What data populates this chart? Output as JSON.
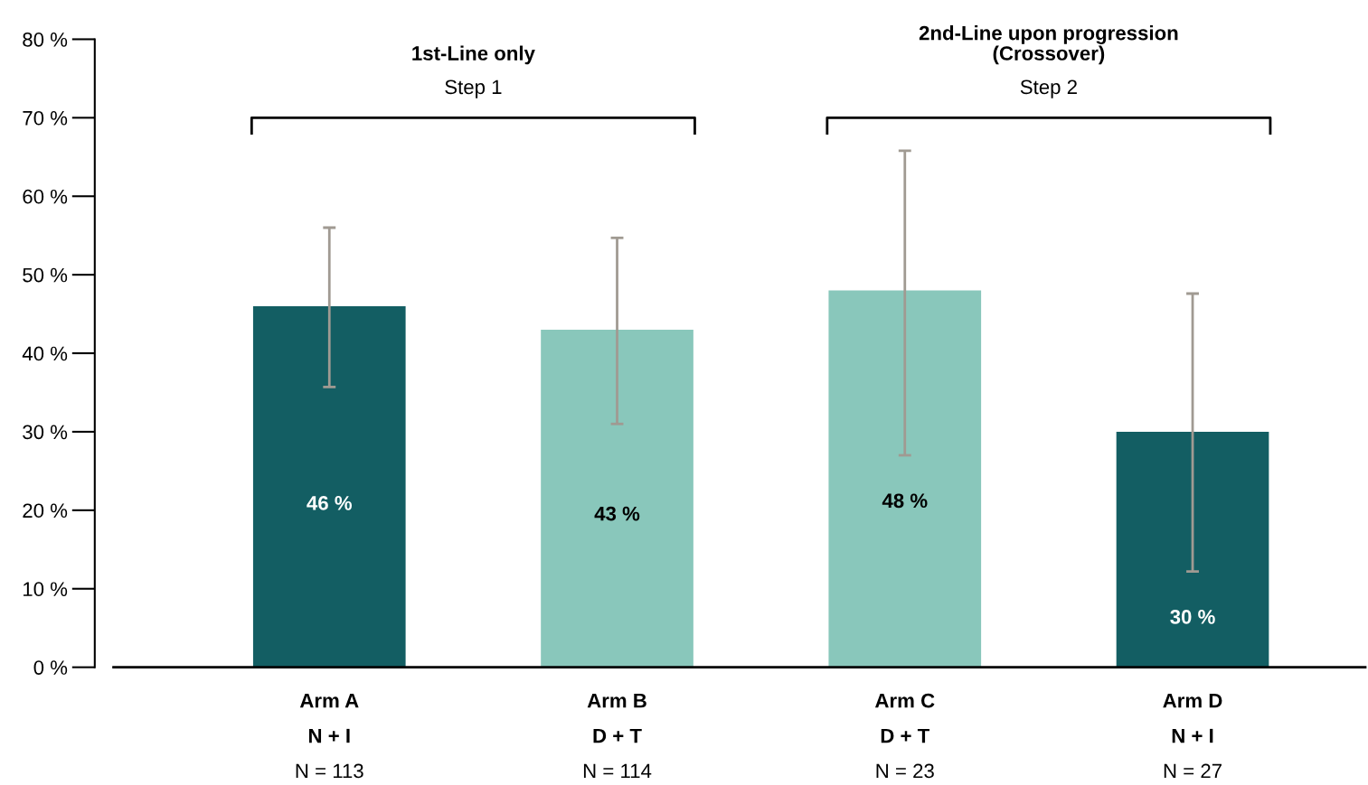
{
  "chart_data": {
    "type": "bar",
    "categories": [
      "Arm A\nN + I\nN = 113",
      "Arm B\nD + T\nN = 114",
      "Arm C\nD + T\nN = 23",
      "Arm D\nN + I\nN = 27"
    ],
    "values": [
      46,
      43,
      48,
      30
    ],
    "colors": [
      "#135e63",
      "#89c7bb",
      "#89c7bb",
      "#135e63"
    ],
    "errors": [
      [
        35.7,
        56
      ],
      [
        31,
        54.7
      ],
      [
        27,
        65.8
      ],
      [
        12.2,
        47.6
      ]
    ],
    "value_labels": [
      "46 %",
      "43 %",
      "48 %",
      "30 %"
    ],
    "ylim": [
      0,
      80
    ],
    "yticks": [
      {
        "value": 0,
        "label": "0 %"
      },
      {
        "value": 10,
        "label": "10 %"
      },
      {
        "value": 20,
        "label": "20 %"
      },
      {
        "value": 30,
        "label": "30 %"
      },
      {
        "value": 40,
        "label": "40 %"
      },
      {
        "value": 50,
        "label": "50 %"
      },
      {
        "value": 60,
        "label": "60 %"
      },
      {
        "value": 70,
        "label": "70 %"
      },
      {
        "value": 80,
        "label": "80 %"
      }
    ],
    "annotations": [
      "1st-Line only",
      "Step 1",
      "2nd-Line upon progression\n(Crossover)",
      "Step 2"
    ],
    "grid": false,
    "legend": false
  }
}
